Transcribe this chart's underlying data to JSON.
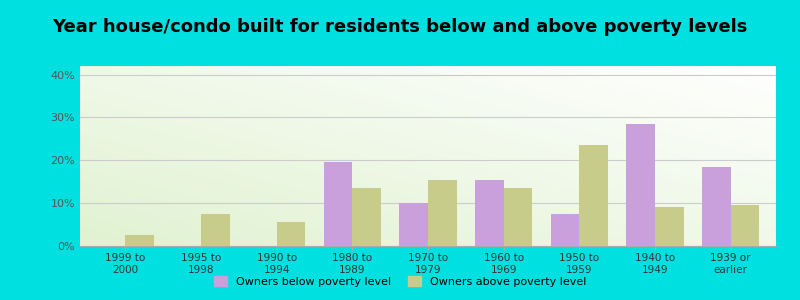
{
  "title": "Year house/condo built for residents below and above poverty levels",
  "categories": [
    "1999 to\n2000",
    "1995 to\n1998",
    "1990 to\n1994",
    "1980 to\n1989",
    "1970 to\n1979",
    "1960 to\n1969",
    "1950 to\n1959",
    "1940 to\n1949",
    "1939 or\nearlier"
  ],
  "below_poverty": [
    0,
    0,
    0,
    19.5,
    10.0,
    15.5,
    7.5,
    28.5,
    18.5
  ],
  "above_poverty": [
    2.5,
    7.5,
    5.5,
    13.5,
    15.5,
    13.5,
    23.5,
    9.0,
    9.5
  ],
  "below_color": "#c9a0dc",
  "above_color": "#c8cc8a",
  "background_outer": "#00e0e0",
  "ylim_max": 42,
  "yticks": [
    0,
    10,
    20,
    30,
    40
  ],
  "ytick_labels": [
    "0%",
    "10%",
    "20%",
    "30%",
    "40%"
  ],
  "title_fontsize": 13,
  "legend_below_label": "Owners below poverty level",
  "legend_above_label": "Owners above poverty level",
  "bar_width": 0.38,
  "grid_color": "#cccccc"
}
